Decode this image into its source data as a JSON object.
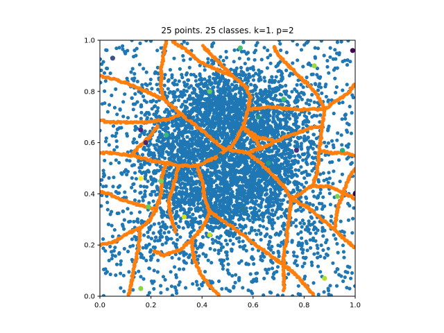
{
  "chart_data": {
    "type": "scatter",
    "title": "25 points. 25 classes. k=1. p=2",
    "xlabel": "",
    "ylabel": "",
    "xlim": [
      0.0,
      1.0
    ],
    "ylim": [
      0.0,
      1.0
    ],
    "x_ticks": [
      "0.0",
      "0.2",
      "0.4",
      "0.6",
      "0.8",
      "1.0"
    ],
    "y_ticks": [
      "0.0",
      "0.2",
      "0.4",
      "0.6",
      "0.8",
      "1.0"
    ],
    "grid": false,
    "colors": {
      "random_points": "#1f77b4",
      "boundary_points": "#ff7f0e"
    },
    "class_points": [
      {
        "x": 0.05,
        "y": 0.93,
        "color": "#3b528b"
      },
      {
        "x": 0.16,
        "y": 0.65,
        "color": "#472c7a"
      },
      {
        "x": 0.18,
        "y": 0.6,
        "color": "#482878"
      },
      {
        "x": 0.16,
        "y": 0.46,
        "color": "#fde725"
      },
      {
        "x": 0.24,
        "y": 0.45,
        "color": "#7ad151"
      },
      {
        "x": 0.19,
        "y": 0.35,
        "color": "#6ece58"
      },
      {
        "x": 0.33,
        "y": 0.31,
        "color": "#d2e21b"
      },
      {
        "x": 0.43,
        "y": 0.24,
        "color": "#c2df23"
      },
      {
        "x": 0.16,
        "y": 0.03,
        "color": "#86d549"
      },
      {
        "x": 0.43,
        "y": 0.8,
        "color": "#5ec962"
      },
      {
        "x": 0.55,
        "y": 0.97,
        "color": "#4ac16d"
      },
      {
        "x": 0.72,
        "y": 0.77,
        "color": "#3dbc74"
      },
      {
        "x": 0.77,
        "y": 0.57,
        "color": "#46327e"
      },
      {
        "x": 0.95,
        "y": 0.57,
        "color": "#26ad81"
      },
      {
        "x": 0.93,
        "y": 0.39,
        "color": "#7ad151"
      },
      {
        "x": 1.0,
        "y": 0.4,
        "color": "#440154"
      },
      {
        "x": 0.99,
        "y": 0.96,
        "color": "#440154"
      },
      {
        "x": 0.84,
        "y": 0.9,
        "color": "#9fda3a"
      },
      {
        "x": 0.26,
        "y": 0.63,
        "color": "#35b779"
      },
      {
        "x": 0.56,
        "y": 0.34,
        "color": "#2a788e"
      },
      {
        "x": 0.62,
        "y": 0.7,
        "color": "#21918c"
      },
      {
        "x": 0.47,
        "y": 0.55,
        "color": "#2c728e"
      },
      {
        "x": 0.35,
        "y": 0.7,
        "color": "#31688e"
      },
      {
        "x": 0.66,
        "y": 0.52,
        "color": "#1f9e89"
      },
      {
        "x": 0.88,
        "y": 0.07,
        "color": "#b5de2b"
      }
    ],
    "boundary_segments": [
      [
        [
          0.49,
          0.57
        ],
        [
          0.41,
          0.64
        ],
        [
          0.32,
          0.71
        ],
        [
          0.25,
          0.77
        ],
        [
          0.24,
          0.82
        ],
        [
          0.24,
          0.89
        ],
        [
          0.26,
          1.0
        ]
      ],
      [
        [
          0.49,
          0.57
        ],
        [
          0.52,
          0.59
        ],
        [
          0.56,
          0.66
        ],
        [
          0.58,
          0.73
        ],
        [
          0.59,
          0.78
        ],
        [
          0.57,
          0.82
        ],
        [
          0.52,
          0.86
        ],
        [
          0.47,
          0.88
        ],
        [
          0.4,
          0.91
        ],
        [
          0.34,
          0.96
        ],
        [
          0.28,
          1.0
        ]
      ],
      [
        [
          0.52,
          0.86
        ],
        [
          0.46,
          0.92
        ],
        [
          0.4,
          0.98
        ]
      ],
      [
        [
          0.58,
          0.73
        ],
        [
          0.66,
          0.74
        ],
        [
          0.75,
          0.73
        ],
        [
          0.83,
          0.73
        ],
        [
          0.88,
          0.73
        ]
      ],
      [
        [
          0.88,
          0.73
        ],
        [
          0.85,
          0.79
        ],
        [
          0.8,
          0.84
        ],
        [
          0.76,
          0.88
        ],
        [
          0.7,
          0.94
        ],
        [
          0.68,
          0.98
        ]
      ],
      [
        [
          0.88,
          0.73
        ],
        [
          0.92,
          0.76
        ],
        [
          0.97,
          0.79
        ],
        [
          1.0,
          0.83
        ]
      ],
      [
        [
          0.88,
          0.73
        ],
        [
          0.87,
          0.66
        ],
        [
          0.86,
          0.57
        ],
        [
          0.85,
          0.48
        ],
        [
          0.83,
          0.43
        ],
        [
          0.75,
          0.38
        ]
      ],
      [
        [
          0.51,
          0.57
        ],
        [
          0.58,
          0.56
        ],
        [
          0.66,
          0.59
        ],
        [
          0.72,
          0.62
        ],
        [
          0.78,
          0.64
        ],
        [
          0.83,
          0.66
        ],
        [
          0.87,
          0.66
        ]
      ],
      [
        [
          0.56,
          0.66
        ],
        [
          0.62,
          0.62
        ],
        [
          0.68,
          0.61
        ]
      ],
      [
        [
          0.49,
          0.57
        ],
        [
          0.45,
          0.54
        ],
        [
          0.38,
          0.51
        ],
        [
          0.31,
          0.51
        ],
        [
          0.26,
          0.52
        ],
        [
          0.2,
          0.53
        ],
        [
          0.12,
          0.55
        ],
        [
          0.05,
          0.56
        ],
        [
          0.0,
          0.56
        ]
      ],
      [
        [
          0.26,
          0.52
        ],
        [
          0.24,
          0.46
        ],
        [
          0.24,
          0.4
        ],
        [
          0.22,
          0.34
        ],
        [
          0.2,
          0.3
        ],
        [
          0.16,
          0.27
        ],
        [
          0.1,
          0.24
        ],
        [
          0.05,
          0.21
        ],
        [
          0.0,
          0.2
        ]
      ],
      [
        [
          0.22,
          0.34
        ],
        [
          0.14,
          0.36
        ],
        [
          0.08,
          0.38
        ],
        [
          0.03,
          0.4
        ],
        [
          0.0,
          0.41
        ]
      ],
      [
        [
          0.38,
          0.51
        ],
        [
          0.4,
          0.45
        ],
        [
          0.41,
          0.38
        ],
        [
          0.43,
          0.33
        ],
        [
          0.41,
          0.28
        ],
        [
          0.36,
          0.22
        ],
        [
          0.31,
          0.18
        ],
        [
          0.25,
          0.16
        ],
        [
          0.21,
          0.18
        ]
      ],
      [
        [
          0.36,
          0.22
        ],
        [
          0.37,
          0.14
        ],
        [
          0.4,
          0.08
        ],
        [
          0.44,
          0.03
        ],
        [
          0.47,
          0.0
        ]
      ],
      [
        [
          0.43,
          0.33
        ],
        [
          0.52,
          0.27
        ],
        [
          0.6,
          0.21
        ],
        [
          0.68,
          0.15
        ],
        [
          0.75,
          0.1
        ],
        [
          0.8,
          0.05
        ],
        [
          0.84,
          0.0
        ]
      ],
      [
        [
          0.56,
          0.66
        ],
        [
          0.6,
          0.62
        ],
        [
          0.63,
          0.58
        ]
      ],
      [
        [
          0.58,
          0.56
        ],
        [
          0.63,
          0.52
        ],
        [
          0.68,
          0.47
        ],
        [
          0.72,
          0.43
        ],
        [
          0.75,
          0.38
        ]
      ],
      [
        [
          0.75,
          0.38
        ],
        [
          0.74,
          0.3
        ],
        [
          0.73,
          0.22
        ],
        [
          0.72,
          0.15
        ],
        [
          0.72,
          0.08
        ],
        [
          0.72,
          0.02
        ]
      ],
      [
        [
          0.75,
          0.38
        ],
        [
          0.81,
          0.35
        ],
        [
          0.87,
          0.3
        ],
        [
          0.92,
          0.26
        ],
        [
          0.96,
          0.22
        ],
        [
          1.0,
          0.19
        ]
      ],
      [
        [
          0.92,
          0.26
        ],
        [
          0.93,
          0.34
        ],
        [
          0.96,
          0.42
        ],
        [
          0.98,
          0.47
        ],
        [
          1.0,
          0.5
        ]
      ],
      [
        [
          0.86,
          0.57
        ],
        [
          0.91,
          0.56
        ],
        [
          0.95,
          0.56
        ],
        [
          1.0,
          0.55
        ]
      ],
      [
        [
          0.32,
          0.71
        ],
        [
          0.26,
          0.69
        ],
        [
          0.18,
          0.68
        ],
        [
          0.1,
          0.68
        ],
        [
          0.03,
          0.68
        ],
        [
          0.0,
          0.69
        ]
      ],
      [
        [
          0.25,
          0.77
        ],
        [
          0.18,
          0.8
        ],
        [
          0.11,
          0.83
        ],
        [
          0.05,
          0.85
        ],
        [
          0.0,
          0.86
        ]
      ],
      [
        [
          0.12,
          0.55
        ],
        [
          0.16,
          0.59
        ],
        [
          0.2,
          0.63
        ],
        [
          0.23,
          0.67
        ]
      ],
      [
        [
          0.16,
          0.27
        ],
        [
          0.15,
          0.18
        ],
        [
          0.13,
          0.1
        ],
        [
          0.12,
          0.03
        ],
        [
          0.11,
          0.0
        ]
      ],
      [
        [
          0.31,
          0.51
        ],
        [
          0.29,
          0.44
        ],
        [
          0.27,
          0.37
        ],
        [
          0.28,
          0.3
        ],
        [
          0.3,
          0.25
        ]
      ],
      [
        [
          0.83,
          0.43
        ],
        [
          0.9,
          0.43
        ],
        [
          0.96,
          0.4
        ],
        [
          1.0,
          0.38
        ]
      ]
    ]
  }
}
